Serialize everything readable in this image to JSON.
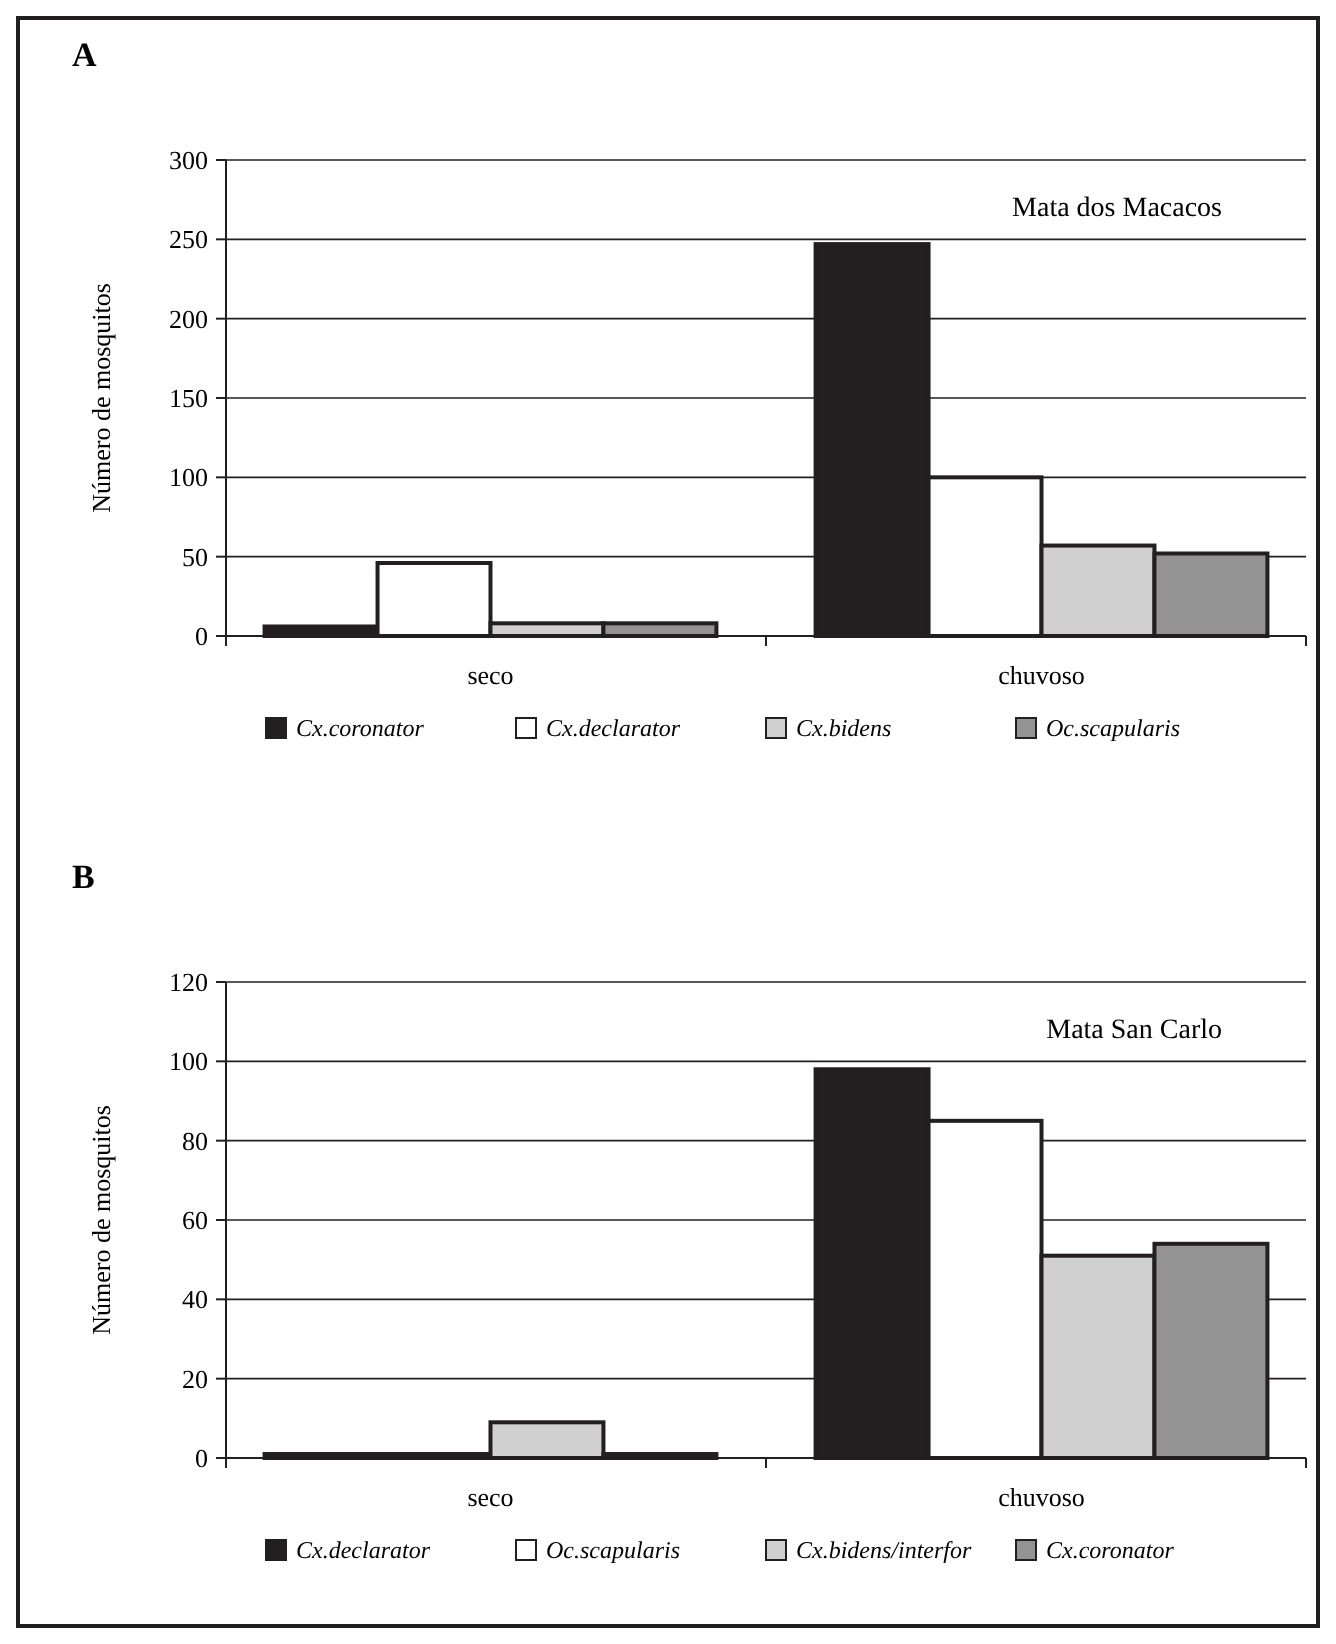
{
  "chart_data": [
    {
      "type": "bar",
      "title": "A",
      "ylabel": "Número de mosquitos",
      "categories": [
        "seco",
        "chuvoso"
      ],
      "ylim": [
        0,
        300
      ],
      "yticks": [
        0,
        50,
        100,
        150,
        200,
        250,
        300
      ],
      "grid": "y",
      "legend": "bottom",
      "annotations": [
        "Mata dos Macacos"
      ],
      "series": [
        {
          "name": "Cx.coronator",
          "color": "#231f20",
          "values": [
            6,
            247
          ]
        },
        {
          "name": "Cx.declarator",
          "color": "#ffffff",
          "values": [
            46,
            100
          ]
        },
        {
          "name": "Cx.bidens",
          "color": "#d0d0d0",
          "values": [
            8,
            57
          ]
        },
        {
          "name": "Oc.scapularis",
          "color": "#939393",
          "values": [
            8,
            52
          ]
        }
      ]
    },
    {
      "type": "bar",
      "title": "B",
      "ylabel": "Número de mosquitos",
      "categories": [
        "seco",
        "chuvoso"
      ],
      "ylim": [
        0,
        120
      ],
      "yticks": [
        0,
        20,
        40,
        60,
        80,
        100,
        120
      ],
      "grid": "y",
      "legend": "bottom",
      "annotations": [
        "Mata San Carlo"
      ],
      "series": [
        {
          "name": "Cx.declarator",
          "color": "#231f20",
          "values": [
            1,
            98
          ]
        },
        {
          "name": "Oc.scapularis",
          "color": "#ffffff",
          "values": [
            1,
            85
          ]
        },
        {
          "name": "Cx.bidens/interfor",
          "color": "#d0d0d0",
          "values": [
            9,
            51
          ]
        },
        {
          "name": "Cx.coronator",
          "color": "#939393",
          "values": [
            1,
            54
          ]
        }
      ]
    }
  ]
}
